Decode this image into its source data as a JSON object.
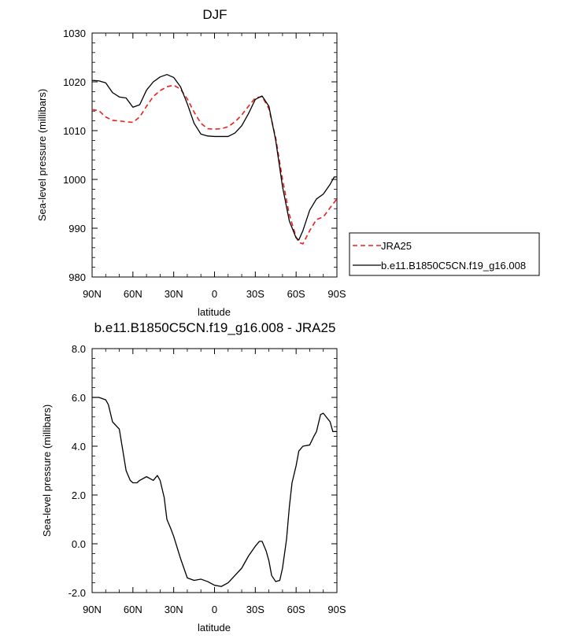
{
  "chart_data": [
    {
      "type": "line",
      "title": "DJF",
      "xlabel": "latitude",
      "ylabel": "Sea-level pressure (millibars)",
      "xlim": [
        90,
        -90
      ],
      "ylim": [
        980,
        1030
      ],
      "yticks": [
        "980",
        "990",
        "1000",
        "1010",
        "1020",
        "1030"
      ],
      "xticks": [
        "90N",
        "60N",
        "30N",
        "0",
        "30S",
        "60S",
        "90S"
      ],
      "legend_position": "right",
      "series": [
        {
          "name": "JRA25",
          "color": "#e8201f",
          "dash": "dashed",
          "x": [
            90,
            85,
            80,
            75,
            70,
            65,
            60,
            55,
            50,
            45,
            40,
            35,
            30,
            25,
            20,
            15,
            10,
            5,
            0,
            -5,
            -10,
            -15,
            -20,
            -25,
            -30,
            -35,
            -40,
            -45,
            -50,
            -55,
            -60,
            -62,
            -65,
            -70,
            -75,
            -80,
            -85,
            -90
          ],
          "y": [
            1014.3,
            1014.1,
            1012.8,
            1012.1,
            1012.0,
            1011.8,
            1011.7,
            1012.8,
            1015.0,
            1017.0,
            1018.2,
            1019.0,
            1019.3,
            1018.5,
            1016.5,
            1013.8,
            1011.5,
            1010.4,
            1010.3,
            1010.4,
            1010.8,
            1011.8,
            1013.2,
            1015.0,
            1016.7,
            1017.0,
            1014.5,
            1008.5,
            1000.0,
            992.8,
            988.2,
            987.1,
            986.8,
            989.5,
            991.8,
            992.3,
            994.2,
            996.0
          ]
        },
        {
          "name": "b.e11.B1850C5CN.f19_g16.008",
          "color": "#000000",
          "dash": "solid",
          "x": [
            90,
            85,
            80,
            75,
            70,
            65,
            60,
            55,
            50,
            45,
            40,
            35,
            30,
            25,
            20,
            15,
            10,
            5,
            0,
            -5,
            -10,
            -15,
            -20,
            -25,
            -30,
            -35,
            -40,
            -45,
            -50,
            -55,
            -60,
            -62,
            -65,
            -70,
            -75,
            -80,
            -85,
            -88,
            -90
          ],
          "y": [
            1020.3,
            1020.2,
            1019.8,
            1017.8,
            1016.9,
            1016.7,
            1014.8,
            1015.3,
            1018.3,
            1020.0,
            1021.0,
            1021.5,
            1020.9,
            1019.0,
            1015.5,
            1011.5,
            1009.3,
            1008.9,
            1008.8,
            1008.8,
            1008.8,
            1009.5,
            1011.0,
            1013.5,
            1016.4,
            1017.1,
            1015.0,
            1008.0,
            998.5,
            991.5,
            988.0,
            987.6,
            989.5,
            993.7,
            996.0,
            997.0,
            999.0,
            1000.5,
            1000.5
          ]
        }
      ]
    },
    {
      "type": "line",
      "title": "b.e11.B1850C5CN.f19_g16.008 - JRA25",
      "xlabel": "latitude",
      "ylabel": "Sea-level pressure (millibars)",
      "xlim": [
        90,
        -90
      ],
      "ylim": [
        -2,
        8
      ],
      "yticks": [
        "-2.0",
        "0.0",
        "2.0",
        "4.0",
        "6.0",
        "8.0"
      ],
      "xticks": [
        "90N",
        "60N",
        "30N",
        "0",
        "30S",
        "60S",
        "90S"
      ],
      "series": [
        {
          "color": "#000000",
          "dash": "solid",
          "x": [
            90,
            85,
            80,
            78,
            75,
            70,
            65,
            62,
            60,
            57,
            55,
            50,
            45,
            42,
            40,
            37,
            35,
            32,
            30,
            25,
            20,
            15,
            10,
            5,
            0,
            -5,
            -10,
            -15,
            -20,
            -25,
            -30,
            -33,
            -35,
            -38,
            -40,
            -42,
            -45,
            -48,
            -50,
            -53,
            -55,
            -57,
            -60,
            -62,
            -65,
            -70,
            -73,
            -75,
            -78,
            -80,
            -85,
            -87,
            -88,
            -90
          ],
          "y": [
            6.0,
            6.0,
            5.9,
            5.7,
            5.0,
            4.7,
            3.0,
            2.6,
            2.5,
            2.5,
            2.6,
            2.75,
            2.6,
            2.8,
            2.6,
            1.9,
            1.0,
            0.6,
            0.3,
            -0.6,
            -1.4,
            -1.5,
            -1.45,
            -1.55,
            -1.7,
            -1.75,
            -1.6,
            -1.3,
            -1.0,
            -0.5,
            -0.1,
            0.1,
            0.1,
            -0.3,
            -0.7,
            -1.3,
            -1.55,
            -1.5,
            -1.0,
            0.2,
            1.5,
            2.5,
            3.2,
            3.8,
            4.0,
            4.05,
            4.4,
            4.6,
            5.3,
            5.35,
            5.0,
            4.6,
            4.6,
            4.6
          ]
        }
      ]
    }
  ]
}
